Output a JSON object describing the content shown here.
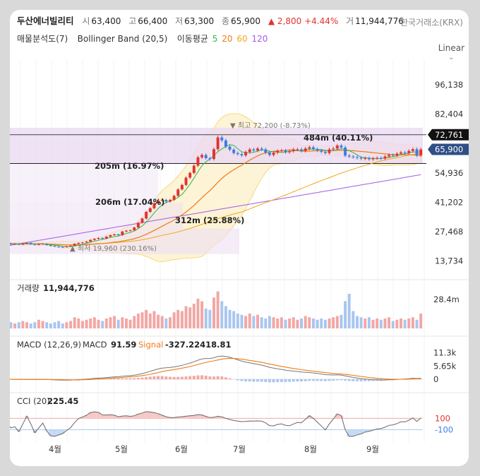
{
  "header": {
    "name": "두산에너빌리티",
    "open_label": "시",
    "open": "63,400",
    "high_label": "고",
    "high": "66,400",
    "low_label": "저",
    "low": "63,300",
    "close_label": "종",
    "close": "65,900",
    "change": "▲ 2,800",
    "change_pct": "+4.44%",
    "volume_label": "거",
    "volume": "11,944,776",
    "exchange": "한국거래소(KRX)"
  },
  "indicators": {
    "volume_profile": "매물분석도(7)",
    "bollinger": "Bollinger Band (20,5)",
    "ma_label": "이동평균",
    "ma_5": "5",
    "ma_20": "20",
    "ma_60": "60",
    "ma_120": "120"
  },
  "scale_mode": "Linear",
  "colors": {
    "up": "#e0342f",
    "down": "#3d7de0",
    "ma5": "#2db84a",
    "ma20": "#f07b16",
    "ma60": "#f0a818",
    "ma120": "#a45be6",
    "band": "#f5c842"
  },
  "chart_data": [
    {
      "type": "candlestick",
      "x_ticks": [
        "4월",
        "5월",
        "6월",
        "7월",
        "8월",
        "9월"
      ],
      "y_ticks": [
        "96,138",
        "82,404",
        "54,936",
        "41,202",
        "27,468",
        "13,734"
      ],
      "ylim": [
        7000,
        108000
      ],
      "last_price": "65,900",
      "last_price_value": 65900,
      "high_line_label": "72,761",
      "high_line_value": 72761,
      "support_line_value": 59300,
      "annotations": {
        "max": "▼ 최고 72,200 (-8.73%)",
        "min": "▲ 최저 19,960 (230.16%)",
        "vp1": "484m (40.11%)",
        "vp2": "205m (16.97%)",
        "vp3": "206m (17.04%)",
        "vp4": "312m (25.88%)"
      },
      "close": [
        22000,
        21600,
        21800,
        21400,
        21900,
        22200,
        21600,
        21300,
        21700,
        21800,
        21200,
        20800,
        20500,
        20300,
        20200,
        20600,
        20900,
        21800,
        22200,
        22400,
        22800,
        23600,
        24100,
        24500,
        24200,
        25100,
        25800,
        26200,
        25800,
        27500,
        27900,
        28100,
        29400,
        31600,
        33600,
        36700,
        38400,
        40700,
        42000,
        42300,
        41500,
        42300,
        44200,
        47200,
        49300,
        52700,
        54900,
        58300,
        62200,
        63300,
        61800,
        61400,
        66000,
        71500,
        70100,
        67200,
        65800,
        64200,
        63700,
        63100,
        64700,
        65900,
        65400,
        66300,
        65900,
        64400,
        63300,
        64400,
        65200,
        65400,
        64600,
        65100,
        65900,
        65900,
        65200,
        66300,
        66900,
        66000,
        65400,
        64800,
        64200,
        65900,
        66300,
        67700,
        66800,
        63000,
        62600,
        62300,
        62000,
        61600,
        61800,
        61300,
        61700,
        61900,
        61600,
        62600,
        63300,
        63100,
        63900,
        64500,
        64200,
        65200,
        66000,
        63100,
        65900
      ]
    },
    {
      "type": "bar",
      "name": "거래량",
      "label": "거래량",
      "value": "11,944,776",
      "y_ticks": [
        "28.4m"
      ],
      "ylim": [
        0,
        32000000
      ],
      "values": [
        6,
        5,
        4,
        5,
        6,
        5,
        4,
        5,
        7,
        6,
        5,
        4,
        5,
        6,
        4,
        5,
        6,
        9,
        8,
        6,
        7,
        8,
        9,
        7,
        6,
        8,
        9,
        10,
        7,
        9,
        8,
        7,
        10,
        12,
        13,
        15,
        12,
        14,
        11,
        10,
        8,
        9,
        13,
        15,
        14,
        18,
        17,
        20,
        24,
        22,
        16,
        15,
        25,
        30,
        22,
        18,
        15,
        14,
        12,
        11,
        10,
        12,
        10,
        11,
        9,
        8,
        10,
        9,
        8,
        9,
        7,
        8,
        9,
        7,
        8,
        10,
        9,
        8,
        7,
        8,
        7,
        8,
        9,
        10,
        11,
        22,
        28,
        14,
        10,
        9,
        8,
        9,
        7,
        8,
        7,
        8,
        9,
        6,
        7,
        8,
        7,
        8,
        9,
        7,
        12
      ]
    },
    {
      "type": "line",
      "name": "MACD",
      "label": "MACD (12,26,9)",
      "macd_label": "MACD",
      "macd_value": "91.59",
      "signal_label": "Signal",
      "signal_value": "-327.22418.81",
      "y_ticks": [
        "11.3k",
        "5.65k",
        "0"
      ],
      "ylim": [
        -1500,
        13000
      ]
    },
    {
      "type": "line",
      "name": "CCI",
      "label": "CCI (20)",
      "value": "225.45",
      "y_ticks": [
        "100",
        "-100"
      ],
      "ylim": [
        -320,
        330
      ]
    }
  ]
}
